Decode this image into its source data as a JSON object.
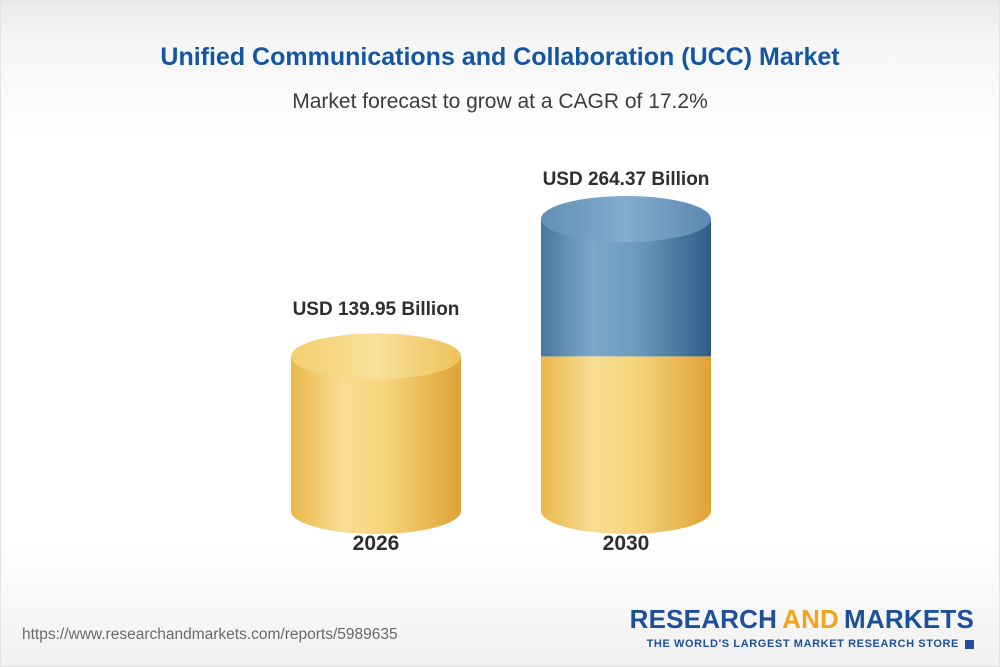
{
  "page": {
    "title": "Unified Communications and Collaboration (UCC) Market",
    "subtitle": "Market forecast to grow at a CAGR of 17.2%",
    "source_url": "https://www.researchandmarkets.com/reports/5989635"
  },
  "logo": {
    "part1": "RESEARCH",
    "part2": "AND",
    "part3": "MARKETS",
    "tagline": "THE WORLD'S LARGEST MARKET RESEARCH STORE"
  },
  "colors": {
    "title_blue": "#1456a4",
    "gold": "#f2c55f",
    "blue": "#4a7aa6",
    "logo_blue": "#1d4f9d",
    "logo_orange": "#f2a51c"
  },
  "chart_data": {
    "type": "bar",
    "categories": [
      "2026",
      "2030"
    ],
    "values": [
      139.95,
      264.37
    ],
    "value_labels": [
      "USD 139.95 Billion",
      "USD 264.37 Billion"
    ],
    "unit": "USD Billion",
    "title": "Unified Communications and Collaboration (UCC) Market",
    "subtitle": "Market forecast to grow at a CAGR of 17.2%",
    "cagr": "17.2%",
    "ylim": [
      0,
      280
    ],
    "legend_position": "none",
    "grid": false,
    "style_note": "3D cylinder bars; 2030 bar stacked: gold base equals 2026 value, blue segment is growth above it"
  }
}
